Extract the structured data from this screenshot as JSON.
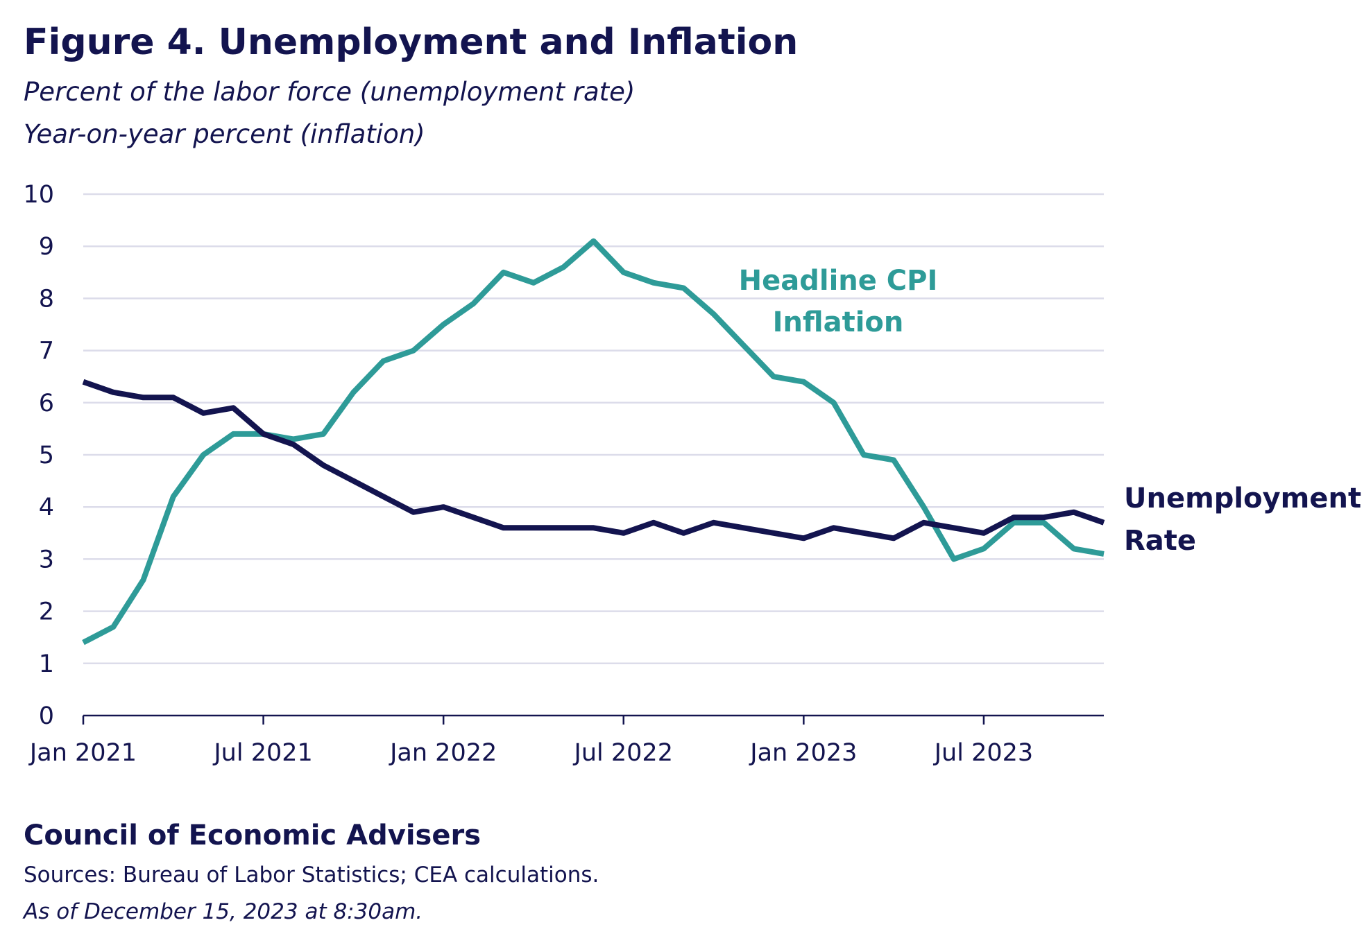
{
  "title": "Figure 4. Unemployment and Inflation",
  "subtitle_lines": [
    "Percent of the labor force (unemployment rate)",
    "Year-on-year percent (inflation)"
  ],
  "footer": {
    "org": "Council of Economic Advisers",
    "sources": "Sources: Bureau of Labor Statistics; CEA calculations.",
    "as_of": "As of December 15, 2023 at 8:30am."
  },
  "chart_data": {
    "type": "line",
    "title": "Figure 4. Unemployment and Inflation",
    "ylim": [
      0,
      10
    ],
    "y_ticks": [
      "0",
      "1",
      "2",
      "3",
      "4",
      "5",
      "6",
      "7",
      "8",
      "9",
      "10"
    ],
    "x_tick_labels": [
      "Jan 2021",
      "Jul 2021",
      "Jan 2022",
      "Jul 2022",
      "Jan 2023",
      "Jul 2023"
    ],
    "x_range": [
      "2021-01",
      "2023-11"
    ],
    "grid": true,
    "x": [
      "2021-01",
      "2021-02",
      "2021-03",
      "2021-04",
      "2021-05",
      "2021-06",
      "2021-07",
      "2021-08",
      "2021-09",
      "2021-10",
      "2021-11",
      "2021-12",
      "2022-01",
      "2022-02",
      "2022-03",
      "2022-04",
      "2022-05",
      "2022-06",
      "2022-07",
      "2022-08",
      "2022-09",
      "2022-10",
      "2022-11",
      "2022-12",
      "2023-01",
      "2023-02",
      "2023-03",
      "2023-04",
      "2023-05",
      "2023-06",
      "2023-07",
      "2023-08",
      "2023-09",
      "2023-10",
      "2023-11"
    ],
    "series": [
      {
        "name": "Unemployment Rate",
        "label_lines": [
          "Unemployment",
          "Rate"
        ],
        "color": "#13144f",
        "values": [
          6.4,
          6.2,
          6.1,
          6.1,
          5.8,
          5.9,
          5.4,
          5.2,
          4.8,
          4.5,
          4.2,
          3.9,
          4.0,
          3.8,
          3.6,
          3.6,
          3.6,
          3.6,
          3.5,
          3.7,
          3.5,
          3.7,
          3.6,
          3.5,
          3.4,
          3.6,
          3.5,
          3.4,
          3.7,
          3.6,
          3.5,
          3.8,
          3.8,
          3.9,
          3.7
        ]
      },
      {
        "name": "Headline CPI Inflation",
        "label_lines": [
          "Headline CPI",
          "Inflation"
        ],
        "color": "#2e9b98",
        "values": [
          1.4,
          1.7,
          2.6,
          4.2,
          5.0,
          5.4,
          5.4,
          5.3,
          5.4,
          6.2,
          6.8,
          7.0,
          7.5,
          7.9,
          8.5,
          8.3,
          8.6,
          9.1,
          8.5,
          8.3,
          8.2,
          7.7,
          7.1,
          6.5,
          6.4,
          6.0,
          5.0,
          4.9,
          4.0,
          3.0,
          3.2,
          3.7,
          3.7,
          3.2,
          3.1
        ]
      }
    ]
  }
}
